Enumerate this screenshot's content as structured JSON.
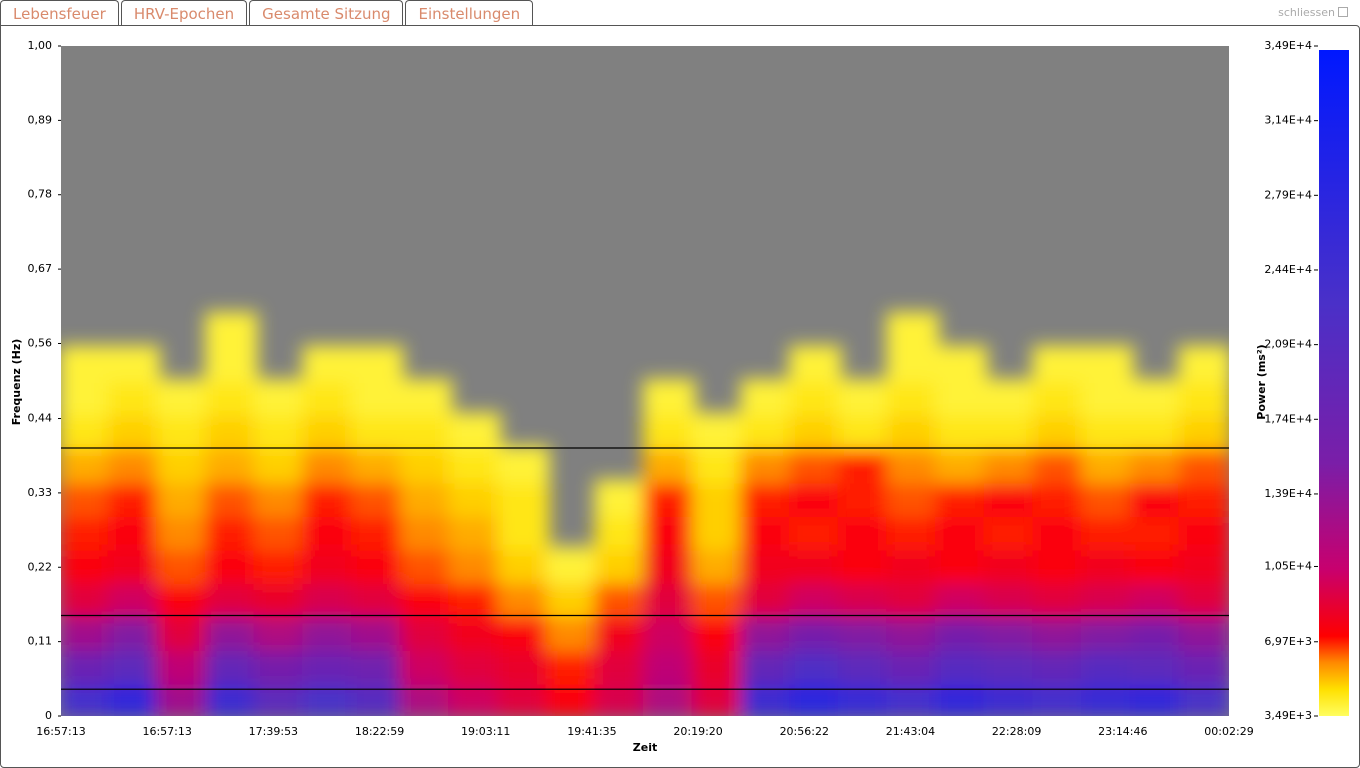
{
  "tabs": [
    "Lebensfeuer",
    "HRV-Epochen",
    "Gesamte Sitzung",
    "Einstellungen"
  ],
  "close_label": "schliessen",
  "chart_data": {
    "type": "heatmap",
    "xlabel": "Zeit",
    "ylabel": "Frequenz (Hz)",
    "colorbar_label": "Power (ms²)",
    "x_tick_labels": [
      "16:57:13",
      "16:57:13",
      "17:39:53",
      "18:22:59",
      "19:03:11",
      "19:41:35",
      "20:19:20",
      "20:56:22",
      "21:43:04",
      "22:28:09",
      "23:14:46",
      "00:02:29"
    ],
    "ylim": [
      0,
      1
    ],
    "yticks": [
      0,
      {
        "value": 0.111,
        "label": "0,11"
      },
      {
        "value": 0.222,
        "label": "0,22"
      },
      {
        "value": 0.333,
        "label": "0,33"
      },
      {
        "value": 0.444,
        "label": "0,44"
      },
      {
        "value": 0.556,
        "label": "0,56"
      },
      {
        "value": 0.667,
        "label": "0,67"
      },
      {
        "value": 0.778,
        "label": "0,78"
      },
      {
        "value": 0.889,
        "label": "0,89"
      },
      {
        "value": 1,
        "label": "1,00"
      }
    ],
    "ybins": [
      0,
      0.05,
      0.1,
      0.15,
      0.2,
      0.25,
      0.3,
      0.35,
      0.4,
      0.45,
      0.5,
      0.55,
      0.6
    ],
    "hlines": [
      0.04,
      0.15,
      0.4
    ],
    "zlim": [
      3490,
      34900
    ],
    "zticks": [
      {
        "value": 3490,
        "label": "3,49E+3"
      },
      {
        "value": 6970,
        "label": "6,97E+3"
      },
      {
        "value": 10500,
        "label": "1,05E+4"
      },
      {
        "value": 13900,
        "label": "1,39E+4"
      },
      {
        "value": 17400,
        "label": "1,74E+4"
      },
      {
        "value": 20900,
        "label": "2,09E+4"
      },
      {
        "value": 24400,
        "label": "2,44E+4"
      },
      {
        "value": 27900,
        "label": "2,79E+4"
      },
      {
        "value": 31400,
        "label": "3,14E+4"
      },
      {
        "value": 34900,
        "label": "3,49E+4"
      }
    ],
    "z": [
      [
        24000,
        27000,
        13000,
        25000,
        20000,
        23000,
        21000,
        12000,
        10000,
        9000,
        7500,
        9500,
        12000,
        9000,
        25000,
        28000,
        26000,
        24000,
        27000,
        25000,
        24000,
        26000,
        27000,
        23000
      ],
      [
        18000,
        20000,
        11000,
        19000,
        16000,
        18000,
        17000,
        10000,
        9000,
        8500,
        7000,
        9000,
        11000,
        8500,
        19000,
        22000,
        20000,
        18000,
        21000,
        20000,
        19000,
        21000,
        20000,
        18000
      ],
      [
        13000,
        15000,
        9000,
        14000,
        12000,
        14000,
        13000,
        9000,
        8000,
        7500,
        6000,
        8000,
        10000,
        7500,
        14000,
        16000,
        15000,
        14000,
        16000,
        15000,
        14000,
        15000,
        16000,
        14000
      ],
      [
        9000,
        10000,
        7500,
        9000,
        8500,
        9500,
        9000,
        7500,
        7000,
        6000,
        5000,
        6500,
        9000,
        6500,
        9000,
        10000,
        9500,
        9000,
        10000,
        9500,
        9000,
        9500,
        10000,
        9000
      ],
      [
        7500,
        8000,
        6500,
        7500,
        7000,
        8000,
        7500,
        6500,
        6000,
        5000,
        4000,
        5000,
        8000,
        5500,
        8000,
        8000,
        7500,
        8000,
        7500,
        8000,
        7500,
        8000,
        7500,
        8000
      ],
      [
        7000,
        7500,
        6000,
        7000,
        6500,
        7500,
        7000,
        6000,
        5500,
        4500,
        null,
        4500,
        7500,
        5000,
        7500,
        7000,
        7500,
        7000,
        7500,
        7000,
        7500,
        7000,
        7000,
        7500
      ],
      [
        6500,
        7000,
        5500,
        6500,
        6000,
        7000,
        6500,
        5500,
        5000,
        4500,
        null,
        4000,
        7000,
        5000,
        7000,
        7500,
        7000,
        6500,
        7000,
        7500,
        7000,
        6500,
        7500,
        7000
      ],
      [
        5500,
        6000,
        5000,
        5500,
        5000,
        6000,
        5500,
        5000,
        4500,
        4000,
        null,
        null,
        5500,
        4500,
        6000,
        6500,
        7000,
        6000,
        5500,
        6000,
        6500,
        5500,
        6000,
        6500
      ],
      [
        4500,
        5000,
        4500,
        5000,
        4500,
        5000,
        4500,
        4500,
        4000,
        null,
        null,
        null,
        4500,
        4000,
        4500,
        5000,
        4500,
        5000,
        4500,
        4500,
        5000,
        4500,
        4500,
        5000
      ],
      [
        4000,
        4500,
        4000,
        4500,
        4000,
        4500,
        4000,
        4000,
        null,
        null,
        null,
        null,
        4000,
        null,
        4000,
        4500,
        4000,
        4500,
        4000,
        4000,
        4500,
        4000,
        4000,
        4500
      ],
      [
        4000,
        4000,
        null,
        4000,
        null,
        4000,
        4000,
        null,
        null,
        null,
        null,
        null,
        null,
        null,
        null,
        4000,
        null,
        4000,
        4000,
        null,
        4000,
        4000,
        null,
        4000
      ],
      [
        null,
        null,
        null,
        4000,
        null,
        null,
        null,
        null,
        null,
        null,
        null,
        null,
        null,
        null,
        null,
        null,
        null,
        4000,
        null,
        null,
        null,
        null,
        null,
        null
      ]
    ]
  }
}
